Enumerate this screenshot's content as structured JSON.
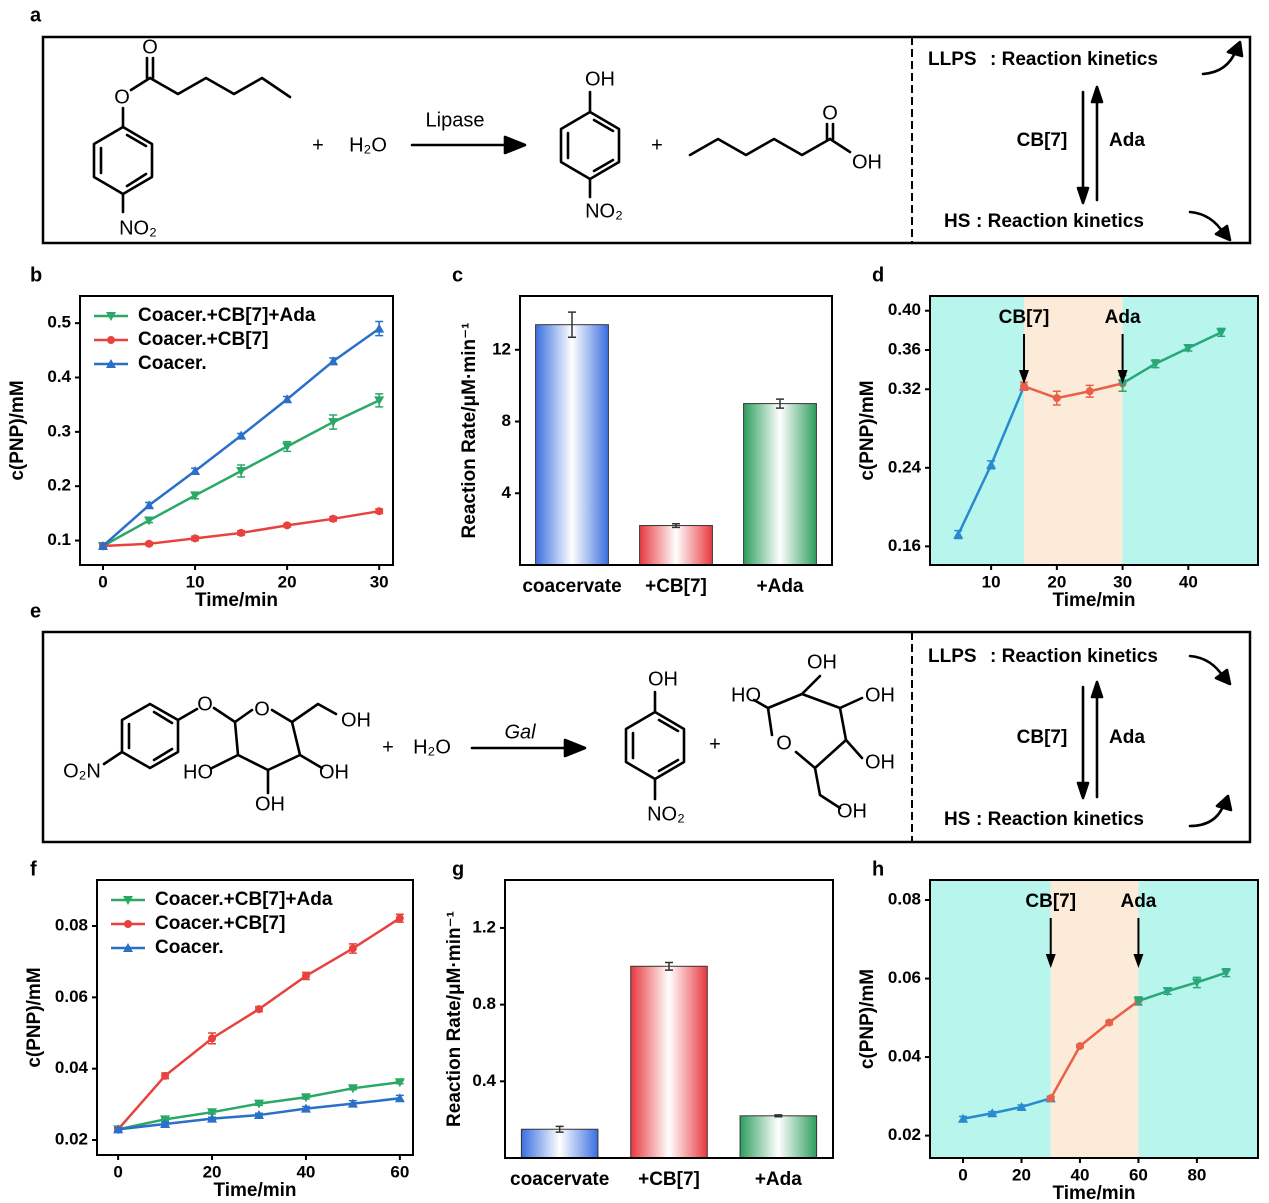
{
  "panel_labels": [
    "a",
    "b",
    "c",
    "d",
    "e",
    "f",
    "g",
    "h"
  ],
  "schemes": [
    {
      "substrate": [
        "O",
        "O",
        "NO₂"
      ],
      "plus": [
        "+",
        "+"
      ],
      "reagent": "H₂O",
      "enzyme": "Lipase",
      "products": [
        "OH",
        "NO₂",
        "O",
        "OH"
      ],
      "states": [
        {
          "name": "LLPS",
          "text": ": Reaction kinetics",
          "color": "#1f4fe0"
        },
        {
          "name": "HS",
          "text": ": Reaction kinetics",
          "color": "#f0683a"
        }
      ],
      "forward": "CB[7]",
      "reverse": "Ada"
    },
    {
      "substrate": [
        "O",
        "O",
        "OH",
        "HO",
        "OH",
        "OH",
        "O₂N"
      ],
      "plus": [
        "+",
        "+"
      ],
      "reagent": "H₂O",
      "enzyme": "Gal",
      "products": [
        "OH",
        "NO₂",
        "OH",
        "HO",
        "OH",
        "O",
        "OH",
        "OH"
      ],
      "states": [
        {
          "name": "LLPS",
          "text": ": Reaction kinetics",
          "color": "#1f4fe0"
        },
        {
          "name": "HS",
          "text": ": Reaction kinetics",
          "color": "#f0683a"
        }
      ],
      "forward": "CB[7]",
      "reverse": "Ada"
    }
  ],
  "chart_data": [
    {
      "type": "line",
      "x": [
        0,
        5,
        10,
        15,
        20,
        25,
        30
      ],
      "xlim": [
        -2.5,
        31.5
      ],
      "ylim": [
        0.055,
        0.55
      ],
      "xticks": [
        0,
        10,
        20,
        30
      ],
      "yticks": [
        0.1,
        0.2,
        0.3,
        0.4,
        0.5
      ],
      "xlabel": "Time/min",
      "ylabel": "c(PNP)/mM",
      "legend": "upper left",
      "series": [
        {
          "name": "Coacer.+CB[7]+Ada",
          "color": "#2aa866",
          "marker": "triangle-down",
          "values": [
            0.09,
            0.137,
            0.183,
            0.228,
            0.273,
            0.318,
            0.358
          ],
          "errors": [
            0.004,
            0.004,
            0.006,
            0.011,
            0.009,
            0.013,
            0.012
          ]
        },
        {
          "name": "Coacer.+CB[7]",
          "color": "#e8423f",
          "marker": "circle",
          "values": [
            0.09,
            0.094,
            0.104,
            0.114,
            0.128,
            0.14,
            0.154
          ],
          "errors": [
            0.004,
            0.003,
            0.004,
            0.004,
            0.003,
            0.004,
            0.004
          ]
        },
        {
          "name": "Coacer.",
          "color": "#2a6fc8",
          "marker": "triangle-up",
          "values": [
            0.09,
            0.165,
            0.228,
            0.293,
            0.36,
            0.43,
            0.49
          ],
          "errors": [
            0.004,
            0.005,
            0.005,
            0.004,
            0.005,
            0.006,
            0.013
          ]
        }
      ]
    },
    {
      "type": "bar",
      "categories": [
        "coacervate",
        "+CB[7]",
        "+Ada"
      ],
      "values": [
        13.4,
        2.2,
        9.0
      ],
      "errors": [
        0.7,
        0.1,
        0.25
      ],
      "colors": [
        "#3a6fe0",
        "#e8393f",
        "#2e9e5e"
      ],
      "ylabel": "Reaction Rate/μM·min⁻¹",
      "ylim": [
        0,
        15
      ],
      "yticks": [
        4,
        8,
        12
      ]
    },
    {
      "type": "line",
      "x": [
        5,
        10,
        15,
        20,
        25,
        30,
        35,
        40,
        45
      ],
      "xlim": [
        0.7,
        50.6
      ],
      "ylim": [
        0.141,
        0.415
      ],
      "xticks": [
        10,
        20,
        30,
        40
      ],
      "yticks": [
        0.16,
        0.24,
        0.32,
        0.36,
        {
          "value": 0.4,
          "label": "0.40"
        }
      ],
      "xlabel": "Time/min",
      "ylabel": "c(PNP)/mM",
      "spans": [
        {
          "start": 0.7,
          "end": 15,
          "color": "#b8f5ec"
        },
        {
          "start": 15,
          "end": 30,
          "color": "#fcebd8"
        },
        {
          "start": 30,
          "end": 50.6,
          "color": "#b8f5ec"
        }
      ],
      "annotations": [
        {
          "text": "CB[7]",
          "x": 15
        },
        {
          "text": "Ada",
          "x": 30
        }
      ],
      "series": [
        {
          "color": "#2a8ad0",
          "marker": "triangle-up",
          "values": [
            0.172,
            0.243,
            0.323,
            null,
            null,
            null,
            null,
            null,
            null
          ],
          "errors": [
            0.004,
            0.004,
            0.004,
            null,
            null,
            null,
            null,
            null,
            null
          ]
        },
        {
          "color": "#e8604a",
          "marker": "circle",
          "values": [
            null,
            null,
            0.323,
            0.311,
            0.318,
            0.326,
            null,
            null,
            null
          ],
          "errors": [
            null,
            null,
            0.004,
            0.007,
            0.006,
            0.008,
            null,
            null,
            null
          ]
        },
        {
          "color": "#28a87a",
          "marker": "triangle-down",
          "values": [
            null,
            null,
            null,
            null,
            null,
            0.326,
            0.346,
            0.362,
            0.378
          ],
          "errors": [
            null,
            null,
            null,
            null,
            null,
            0.008,
            0.004,
            0.003,
            0.004
          ]
        }
      ]
    },
    {
      "type": "line",
      "x": [
        0,
        10,
        20,
        30,
        40,
        50,
        60
      ],
      "xlim": [
        -4.5,
        62.8
      ],
      "ylim": [
        0.0158,
        0.0929
      ],
      "xticks": [
        0,
        20,
        40,
        60
      ],
      "yticks": [
        0.02,
        0.04,
        0.06,
        0.08
      ],
      "xlabel": "Time/min",
      "ylabel": "c(PNP)/mM",
      "legend": "upper left",
      "series": [
        {
          "name": "Coacer.+CB[7]+Ada",
          "color": "#2aa866",
          "marker": "triangle-down",
          "values": [
            0.023,
            0.0258,
            0.0278,
            0.0302,
            0.032,
            0.0345,
            0.0362
          ],
          "errors": [
            0.0004,
            0.0004,
            0.0005,
            0.0005,
            0.0005,
            0.0004,
            0.0004
          ]
        },
        {
          "name": "Coacer.+CB[7]",
          "color": "#e8423f",
          "marker": "circle",
          "values": [
            0.023,
            0.038,
            0.0485,
            0.0567,
            0.066,
            0.0737,
            0.0822
          ],
          "errors": [
            0.0005,
            0.0008,
            0.0015,
            0.0007,
            0.001,
            0.0013,
            0.0011
          ]
        },
        {
          "name": "Coacer.",
          "color": "#2a6fc8",
          "marker": "triangle-up",
          "values": [
            0.023,
            0.0245,
            0.026,
            0.027,
            0.0288,
            0.0302,
            0.0317
          ],
          "errors": [
            0.0004,
            0.0005,
            0.0004,
            0.0005,
            0.0006,
            0.0008,
            0.0008
          ]
        }
      ]
    },
    {
      "type": "bar",
      "categories": [
        "coacervate",
        "+CB[7]",
        "+Ada"
      ],
      "values": [
        0.15,
        1.0,
        0.22
      ],
      "errors": [
        0.015,
        0.02,
        0.005
      ],
      "colors": [
        "#3a6fe0",
        "#e8393f",
        "#2e9e5e"
      ],
      "ylabel": "Reaction Rate/μM·min⁻¹",
      "ylim": [
        0,
        1.45
      ],
      "yticks": [
        0.4,
        0.8,
        1.2
      ]
    },
    {
      "type": "line",
      "x": [
        0,
        10,
        20,
        30,
        40,
        50,
        60,
        70,
        80,
        90
      ],
      "xlim": [
        -11.3,
        100.9
      ],
      "ylim": [
        0.0143,
        0.0851
      ],
      "xticks": [
        0,
        20,
        40,
        60,
        80
      ],
      "yticks": [
        0.02,
        0.04,
        0.06,
        0.08
      ],
      "xlabel": "Time/min",
      "ylabel": "c(PNP)/mM",
      "spans": [
        {
          "start": -11.3,
          "end": 30,
          "color": "#b8f5ec"
        },
        {
          "start": 30,
          "end": 60,
          "color": "#fcebd8"
        },
        {
          "start": 60,
          "end": 100.9,
          "color": "#b8f5ec"
        }
      ],
      "annotations": [
        {
          "text": "CB[7]",
          "x": 30
        },
        {
          "text": "Ada",
          "x": 60
        }
      ],
      "series": [
        {
          "color": "#2a8ad0",
          "marker": "triangle-up",
          "values": [
            0.0243,
            0.0257,
            0.0273,
            0.0295,
            null,
            null,
            null,
            null,
            null,
            null
          ],
          "errors": [
            0.0006,
            0.0004,
            0.0005,
            0.0005,
            null,
            null,
            null,
            null,
            null,
            null
          ]
        },
        {
          "color": "#e8604a",
          "marker": "circle",
          "values": [
            null,
            null,
            null,
            0.0295,
            0.0428,
            0.0488,
            0.0543,
            null,
            null,
            null
          ],
          "errors": [
            null,
            null,
            null,
            0.0005,
            0.0004,
            0.0005,
            0.001,
            null,
            null,
            null
          ]
        },
        {
          "color": "#28a87a",
          "marker": "triangle-down",
          "values": [
            null,
            null,
            null,
            null,
            null,
            null,
            0.0543,
            0.0568,
            0.059,
            0.0615
          ],
          "errors": [
            null,
            null,
            null,
            null,
            null,
            null,
            0.001,
            0.0008,
            0.0013,
            0.001
          ]
        }
      ]
    }
  ]
}
